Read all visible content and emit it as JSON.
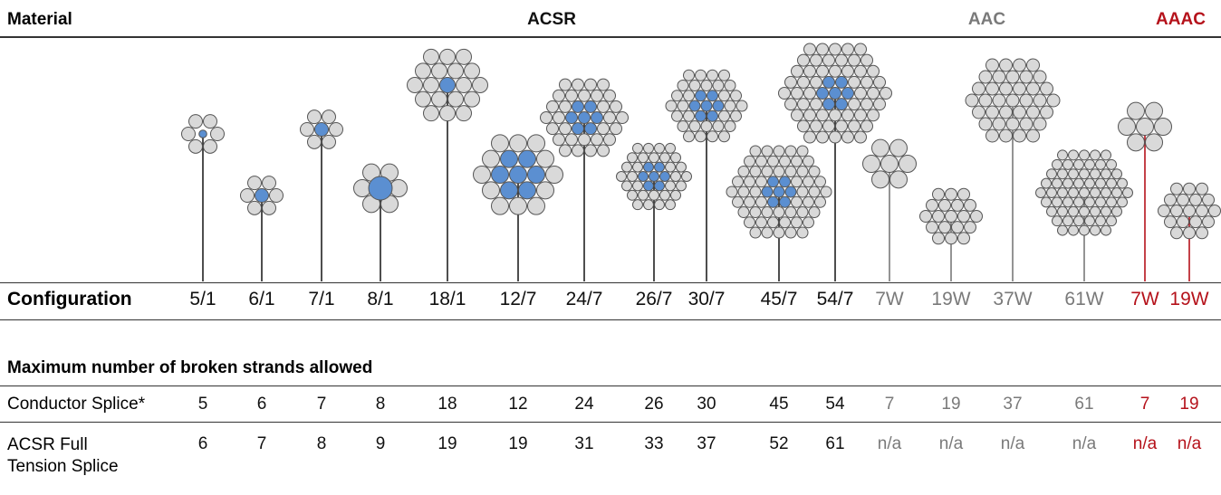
{
  "header": {
    "material": "Material",
    "configuration": "Configuration"
  },
  "groups": [
    {
      "name": "ACSR",
      "color": "#111111",
      "configurations": [
        "5/1",
        "6/1",
        "7/1",
        "8/1",
        "18/1",
        "12/7",
        "24/7",
        "26/7",
        "30/7",
        "45/7",
        "54/7"
      ]
    },
    {
      "name": "AAC",
      "color": "#7a7a7a",
      "configurations": [
        "7W",
        "19W",
        "37W",
        "61W"
      ]
    },
    {
      "name": "AAAC",
      "color": "#b5121b",
      "configurations": [
        "7W",
        "19W"
      ]
    }
  ],
  "section_title": "Maximum number of broken strands allowed",
  "rows": [
    {
      "label": "Conductor Splice*",
      "values": [
        5,
        6,
        7,
        8,
        18,
        12,
        24,
        26,
        30,
        45,
        54,
        7,
        19,
        37,
        61,
        7,
        19
      ]
    },
    {
      "label": "ACSR Full Tension Splice",
      "values": [
        6,
        7,
        8,
        9,
        19,
        19,
        31,
        33,
        37,
        52,
        61,
        "n/a",
        "n/a",
        "n/a",
        "n/a",
        "n/a",
        "n/a"
      ]
    }
  ]
}
